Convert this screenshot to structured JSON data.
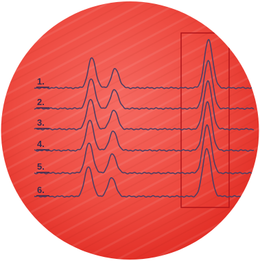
{
  "traces": [
    {
      "label": "1."
    },
    {
      "label": "2."
    },
    {
      "label": "3."
    },
    {
      "label": "4."
    },
    {
      "label": "5."
    },
    {
      "label": "6."
    }
  ]
}
